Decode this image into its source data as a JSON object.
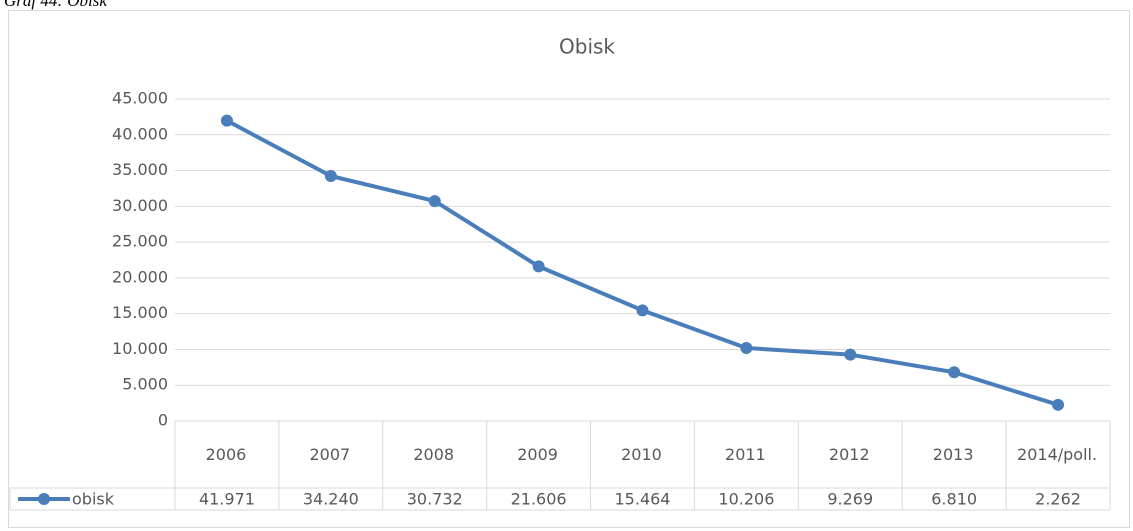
{
  "chart_data": {
    "type": "line",
    "caption": "Graf 44: Obisk",
    "title": "Obisk",
    "categories": [
      "2006",
      "2007",
      "2008",
      "2009",
      "2010",
      "2011",
      "2012",
      "2013",
      "2014/poll."
    ],
    "series": [
      {
        "name": "obisk",
        "color": "#4a7ebb",
        "values": [
          41971,
          34240,
          30732,
          21606,
          15464,
          10206,
          9269,
          6810,
          2262
        ],
        "value_labels": [
          "41.971",
          "34.240",
          "30.732",
          "21.606",
          "15.464",
          "10.206",
          "9.269",
          "6.810",
          "2.262"
        ]
      }
    ],
    "ylim": [
      0,
      45000
    ],
    "yticks": [
      0,
      {
        "value": 5000,
        "label": "5.000"
      },
      {
        "value": 10000,
        "label": "10.000"
      },
      {
        "value": 15000,
        "label": "15.000"
      },
      {
        "value": 20000,
        "label": "20.000"
      },
      {
        "value": 25000,
        "label": "25.000"
      },
      {
        "value": 30000,
        "label": "30.000"
      },
      {
        "value": 35000,
        "label": "35.000"
      },
      {
        "value": 40000,
        "label": "40.000"
      },
      {
        "value": 45000,
        "label": "45.000"
      }
    ],
    "grid": true
  }
}
